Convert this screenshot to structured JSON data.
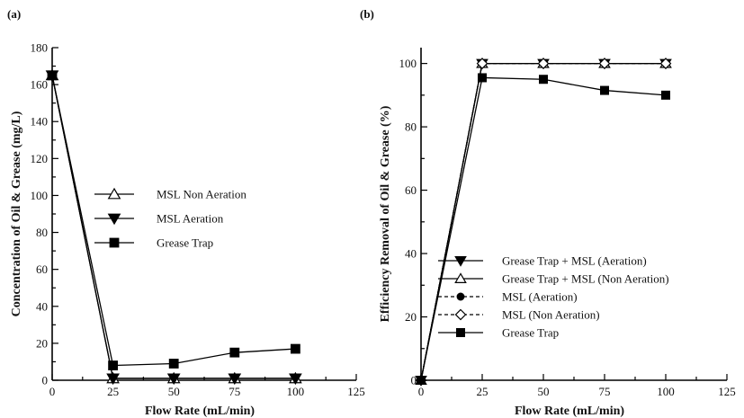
{
  "colors": {
    "ink": "#000000",
    "background": "#ffffff",
    "hollow": "#ffffff"
  },
  "chart_data": [
    {
      "type": "line",
      "panel_label": "(a)",
      "xlabel": "Flow Rate (mL/min)",
      "ylabel": "Concentration of Oil & Grease (mg/L)",
      "xlim": [
        0,
        125
      ],
      "ylim": [
        0,
        180
      ],
      "x_ticks": [
        "0",
        "25",
        "50",
        "75",
        "100",
        "125"
      ],
      "y_ticks": [
        "0",
        "20",
        "40",
        "60",
        "80",
        "100",
        "120",
        "140",
        "160",
        "180"
      ],
      "grid": false,
      "legend_position": "center",
      "x": [
        0,
        25,
        50,
        75,
        100
      ],
      "series": [
        {
          "name": "MSL Non Aeration",
          "marker": "triangle-up-open",
          "line": "solid",
          "values": [
            165,
            1,
            1,
            1,
            1
          ]
        },
        {
          "name": "MSL Aeration",
          "marker": "triangle-down-filled",
          "line": "solid",
          "values": [
            165,
            1,
            1,
            1,
            1
          ]
        },
        {
          "name": "Grease Trap",
          "marker": "square-filled",
          "line": "solid",
          "values": [
            165,
            8,
            9,
            15,
            17
          ]
        }
      ]
    },
    {
      "type": "line",
      "panel_label": "(b)",
      "xlabel": "Flow Rate (mL/min)",
      "ylabel": "Efficiency Removal of Oil & Grease (%)",
      "xlim": [
        0,
        125
      ],
      "ylim": [
        0,
        105
      ],
      "x_ticks": [
        "0",
        "25",
        "50",
        "75",
        "100",
        "125"
      ],
      "y_ticks": [
        "0",
        "20",
        "40",
        "60",
        "80",
        "100"
      ],
      "grid": false,
      "legend_position": "bottom-right",
      "x": [
        0,
        25,
        50,
        75,
        100
      ],
      "series": [
        {
          "name": "Grease Trap + MSL (Aeration)",
          "marker": "triangle-down-filled",
          "line": "solid",
          "values": [
            0,
            100,
            100,
            100,
            100
          ]
        },
        {
          "name": "Grease Trap + MSL (Non Aeration)",
          "marker": "triangle-up-open",
          "line": "solid",
          "values": [
            0,
            100,
            100,
            100,
            100
          ]
        },
        {
          "name": "MSL (Aeration)",
          "marker": "circle-filled",
          "line": "dashed",
          "values": [
            0,
            100,
            100,
            100,
            100
          ]
        },
        {
          "name": "MSL (Non Aeration)",
          "marker": "diamond-open",
          "line": "dashed",
          "values": [
            0,
            100,
            100,
            100,
            100
          ]
        },
        {
          "name": "Grease Trap",
          "marker": "square-filled",
          "line": "solid",
          "values": [
            0,
            95.5,
            95,
            91.5,
            90
          ]
        }
      ]
    }
  ]
}
